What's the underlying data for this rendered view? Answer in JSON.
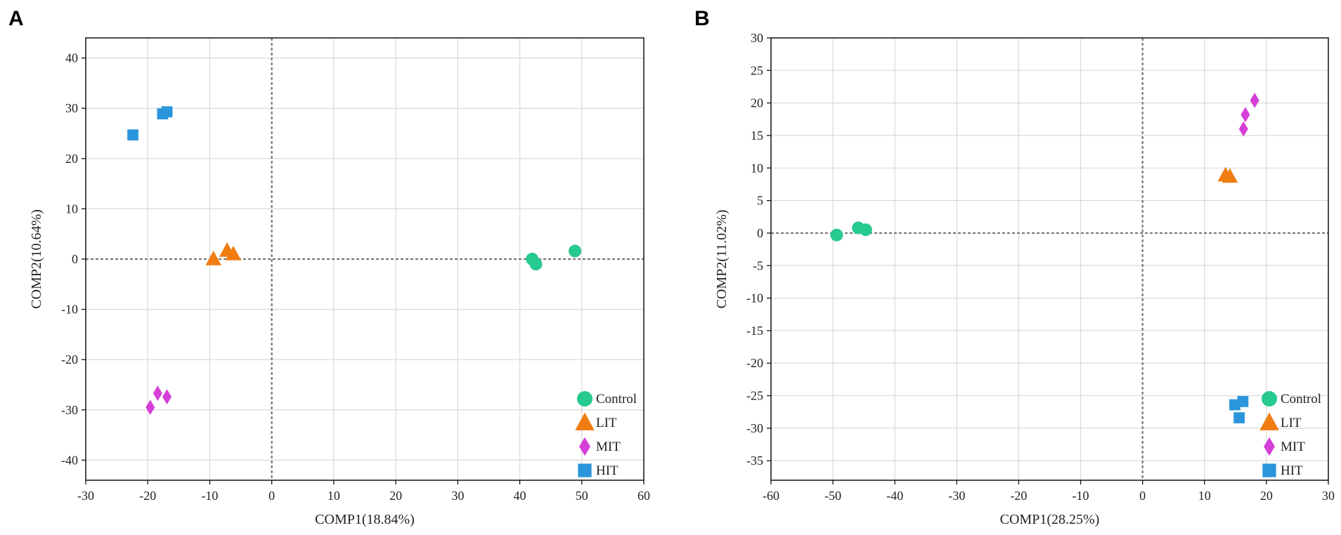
{
  "chart_data": [
    {
      "type": "scatter",
      "panel_label": "A",
      "title": "",
      "xlabel": "COMP1(18.84%)",
      "ylabel": "COMP2(10.64%)",
      "xlim": [
        -30,
        60
      ],
      "ylim": [
        -44,
        44
      ],
      "xticks": [
        -30,
        -20,
        -10,
        0,
        10,
        20,
        30,
        40,
        50,
        60
      ],
      "yticks": [
        -40,
        -30,
        -20,
        -10,
        0,
        10,
        20,
        30,
        40
      ],
      "grid": true,
      "reference_lines": {
        "x": 0,
        "y": 0
      },
      "legend_position": "bottom-right",
      "series": [
        {
          "name": "Control",
          "marker": "circle",
          "color": "#26c98e",
          "points": [
            [
              42,
              0
            ],
            [
              42.6,
              -1
            ],
            [
              48.9,
              1.6
            ]
          ]
        },
        {
          "name": "LIT",
          "marker": "triangle",
          "color": "#f07d12",
          "points": [
            [
              -9.4,
              0
            ],
            [
              -7.2,
              1.7
            ],
            [
              -6.2,
              1
            ]
          ]
        },
        {
          "name": "MIT",
          "marker": "diamond",
          "color": "#d63fd8",
          "points": [
            [
              -19.6,
              -29.5
            ],
            [
              -18.4,
              -26.7
            ],
            [
              -16.9,
              -27.4
            ]
          ]
        },
        {
          "name": "HIT",
          "marker": "square",
          "color": "#2a95db",
          "points": [
            [
              -22.4,
              24.7
            ],
            [
              -17.6,
              28.9
            ],
            [
              -16.9,
              29.3
            ]
          ]
        }
      ]
    },
    {
      "type": "scatter",
      "panel_label": "B",
      "title": "",
      "xlabel": "COMP1(28.25%)",
      "ylabel": "COMP2(11.02%)",
      "xlim": [
        -60,
        30
      ],
      "ylim": [
        -38,
        30
      ],
      "xticks": [
        -60,
        -50,
        -40,
        -30,
        -20,
        -10,
        0,
        10,
        20,
        30
      ],
      "yticks": [
        -35,
        -30,
        -25,
        -20,
        -15,
        -10,
        -5,
        0,
        5,
        10,
        15,
        20,
        25,
        30
      ],
      "grid": true,
      "reference_lines": {
        "x": 0,
        "y": 0
      },
      "legend_position": "bottom-right",
      "series": [
        {
          "name": "Control",
          "marker": "circle",
          "color": "#26c98e",
          "points": [
            [
              -49.4,
              -0.3
            ],
            [
              -45.9,
              0.8
            ],
            [
              -44.7,
              0.5
            ]
          ]
        },
        {
          "name": "LIT",
          "marker": "triangle",
          "color": "#f07d12",
          "points": [
            [
              13.4,
              8.9
            ],
            [
              14.1,
              8.7
            ]
          ]
        },
        {
          "name": "MIT",
          "marker": "diamond",
          "color": "#d63fd8",
          "points": [
            [
              16.3,
              16
            ],
            [
              16.6,
              18.2
            ],
            [
              18.1,
              20.4
            ]
          ]
        },
        {
          "name": "HIT",
          "marker": "square",
          "color": "#2a95db",
          "points": [
            [
              14.9,
              -26.4
            ],
            [
              15.6,
              -28.4
            ],
            [
              16.2,
              -25.9
            ]
          ]
        }
      ]
    }
  ]
}
